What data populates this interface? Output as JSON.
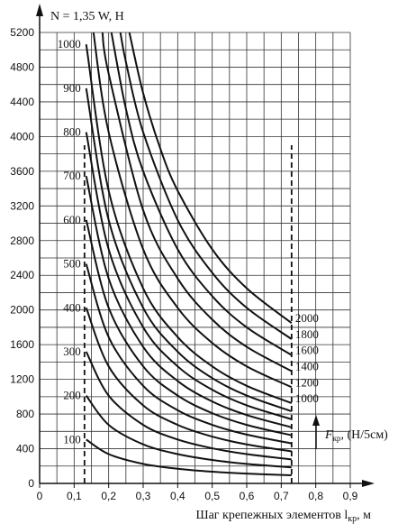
{
  "chart_data": {
    "type": "line",
    "title": "N = 1,35 W, H",
    "xlabel": "Шаг крепежных элементов l",
    "xlabel_sub": "кр",
    "xlabel_unit": ", м",
    "xlim": [
      0,
      0.9
    ],
    "ylim": [
      0,
      5200
    ],
    "x_ticks": [
      "0",
      "0,1",
      "0,2",
      "0,3",
      "0,4",
      "0,5",
      "0,6",
      "0,7",
      "0,8",
      "0,9"
    ],
    "y_ticks": [
      "0",
      "400",
      "800",
      "1200",
      "1600",
      "2000",
      "2400",
      "2800",
      "3200",
      "3600",
      "4000",
      "4400",
      "4800",
      "5200"
    ],
    "grid": true,
    "reference_lines": [
      0.13,
      0.73
    ],
    "legend_annotation": {
      "text": "F",
      "sub": "кр",
      "suffix": ", (Н/5см)"
    },
    "series": [
      {
        "name": "100",
        "label_side": "left",
        "x": [
          0.135,
          0.2,
          0.3,
          0.4,
          0.5,
          0.6,
          0.73
        ],
        "y": [
          506,
          338,
          225,
          169,
          135,
          113,
          93
        ]
      },
      {
        "name": "200",
        "label_side": "left",
        "x": [
          0.135,
          0.2,
          0.3,
          0.4,
          0.5,
          0.6,
          0.73
        ],
        "y": [
          1013,
          675,
          450,
          338,
          270,
          225,
          185
        ]
      },
      {
        "name": "300",
        "label_side": "left",
        "x": [
          0.135,
          0.2,
          0.3,
          0.4,
          0.5,
          0.6,
          0.73
        ],
        "y": [
          1519,
          1013,
          675,
          506,
          405,
          338,
          277
        ]
      },
      {
        "name": "400",
        "label_side": "left",
        "x": [
          0.135,
          0.2,
          0.3,
          0.4,
          0.5,
          0.6,
          0.73
        ],
        "y": [
          2025,
          1350,
          900,
          675,
          540,
          450,
          370
        ]
      },
      {
        "name": "500",
        "label_side": "left",
        "x": [
          0.135,
          0.2,
          0.3,
          0.4,
          0.5,
          0.6,
          0.73
        ],
        "y": [
          2531,
          1688,
          1125,
          844,
          675,
          563,
          462
        ]
      },
      {
        "name": "600",
        "label_side": "left",
        "x": [
          0.135,
          0.2,
          0.3,
          0.4,
          0.5,
          0.6,
          0.73
        ],
        "y": [
          3038,
          2025,
          1350,
          1013,
          810,
          675,
          555
        ]
      },
      {
        "name": "700",
        "label_side": "left",
        "x": [
          0.135,
          0.2,
          0.3,
          0.4,
          0.5,
          0.6,
          0.73
        ],
        "y": [
          3544,
          2363,
          1575,
          1181,
          945,
          788,
          647
        ]
      },
      {
        "name": "800",
        "label_side": "left",
        "x": [
          0.135,
          0.2,
          0.3,
          0.4,
          0.5,
          0.6,
          0.73
        ],
        "y": [
          4050,
          2700,
          1800,
          1350,
          1080,
          900,
          740
        ]
      },
      {
        "name": "900",
        "label_side": "left",
        "x": [
          0.135,
          0.2,
          0.3,
          0.4,
          0.5,
          0.6,
          0.73
        ],
        "y": [
          4556,
          3038,
          2025,
          1519,
          1215,
          1013,
          832
        ]
      },
      {
        "name": "1000",
        "label_side": "both",
        "x": [
          0.135,
          0.2,
          0.3,
          0.4,
          0.5,
          0.6,
          0.73
        ],
        "y": [
          5063,
          3375,
          2250,
          1688,
          1350,
          1125,
          925
        ]
      },
      {
        "name": "1200",
        "label_side": "right",
        "x": [
          0.156,
          0.2,
          0.3,
          0.4,
          0.5,
          0.6,
          0.73
        ],
        "y": [
          5200,
          4050,
          2700,
          2025,
          1620,
          1350,
          1110
        ]
      },
      {
        "name": "1400",
        "label_side": "right",
        "x": [
          0.182,
          0.2,
          0.3,
          0.4,
          0.5,
          0.6,
          0.73
        ],
        "y": [
          5200,
          4725,
          3150,
          2363,
          1890,
          1575,
          1295
        ]
      },
      {
        "name": "1600",
        "label_side": "right",
        "x": [
          0.208,
          0.25,
          0.3,
          0.4,
          0.5,
          0.6,
          0.73
        ],
        "y": [
          5200,
          4320,
          3600,
          2700,
          2160,
          1800,
          1480
        ]
      },
      {
        "name": "1800",
        "label_side": "right",
        "x": [
          0.234,
          0.25,
          0.3,
          0.4,
          0.5,
          0.6,
          0.73
        ],
        "y": [
          5200,
          4860,
          4050,
          3038,
          2430,
          2025,
          1664
        ]
      },
      {
        "name": "2000",
        "label_side": "right",
        "x": [
          0.26,
          0.3,
          0.35,
          0.4,
          0.5,
          0.6,
          0.73
        ],
        "y": [
          5200,
          4500,
          3857,
          3375,
          2700,
          2250,
          1849
        ]
      }
    ]
  }
}
